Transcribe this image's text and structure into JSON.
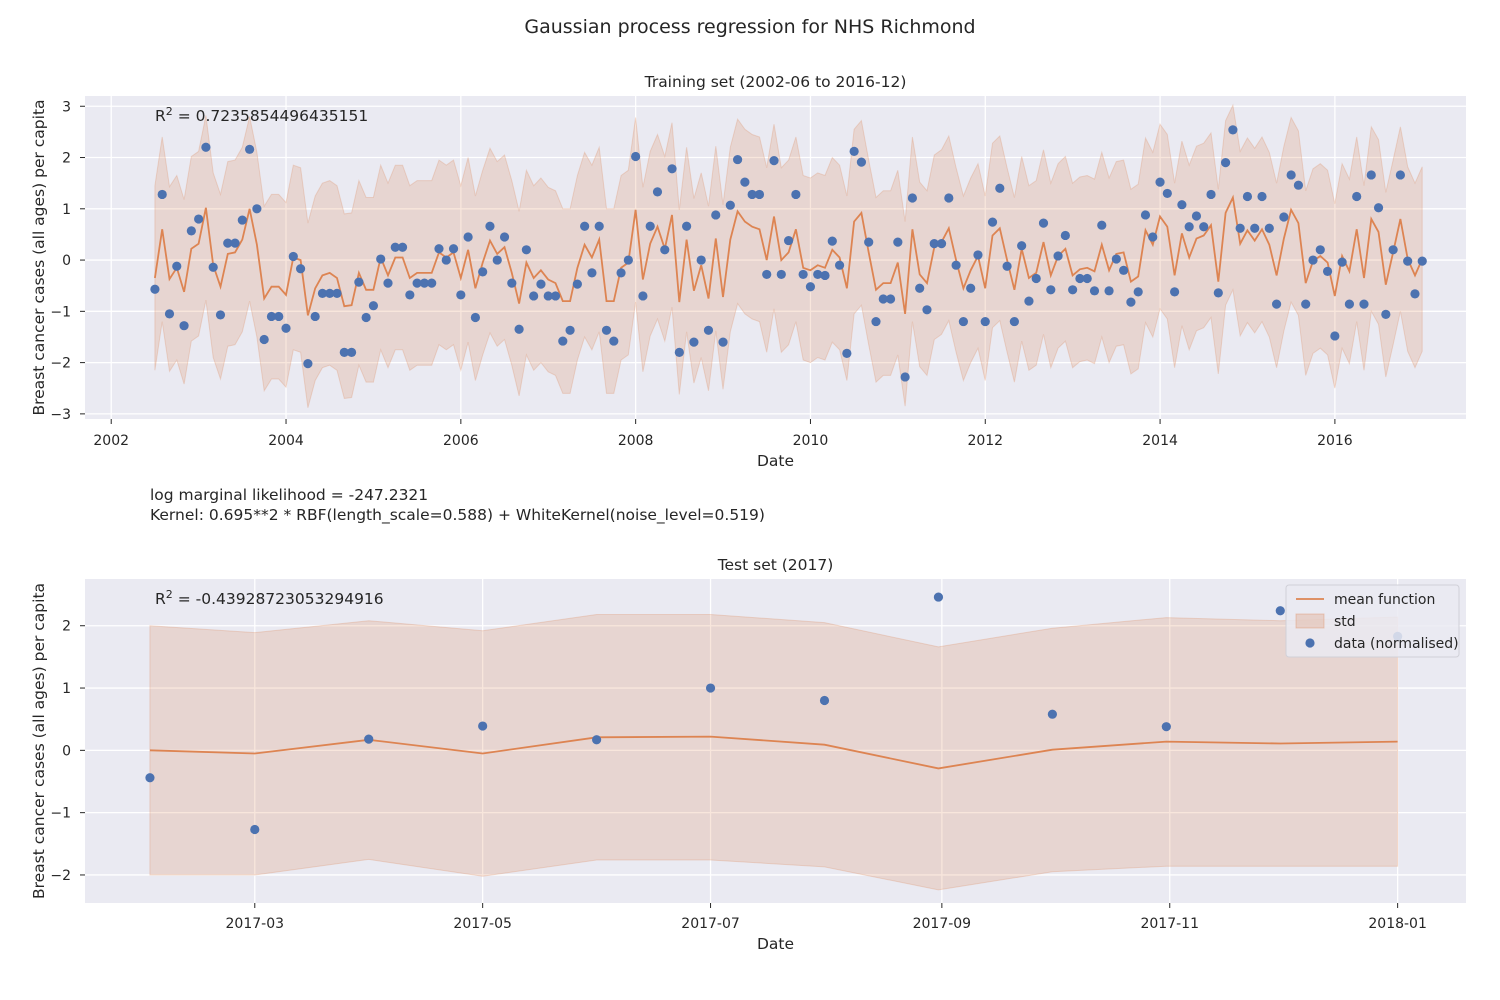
{
  "figure": {
    "title": "Gaussian process regression for NHS Richmond",
    "log_marginal_likelihood": "log marginal likelihood = -247.2321",
    "kernel": "Kernel: 0.695**2 * RBF(length_scale=0.588) + WhiteKernel(noise_level=0.519)"
  },
  "colors": {
    "background": "#eaeaf2",
    "grid": "#ffffff",
    "mean": "#dd8452",
    "std_fill": "#dd8452",
    "data": "#4c72b0"
  },
  "chart_data": [
    {
      "type": "line",
      "title": "Training set (2002-06 to 2016-12)",
      "annotation": "R² = 0.7235854496435151",
      "xlabel": "Date",
      "ylabel": "Breast cancer cases (all ages) per capita",
      "xlim": [
        2001.7,
        2017.5
      ],
      "ylim": [
        -3.1,
        3.2
      ],
      "xticks": [
        2002,
        2004,
        2006,
        2008,
        2010,
        2012,
        2014,
        2016
      ],
      "yticks": [
        -3,
        -2,
        -1,
        0,
        1,
        2,
        3
      ],
      "grid": true,
      "x_start": 2002.5,
      "x_step": 0.08333,
      "series": [
        {
          "name": "data (normalised)",
          "kind": "scatter",
          "values": [
            -0.57,
            1.28,
            -1.05,
            -0.12,
            -1.28,
            0.57,
            0.8,
            2.2,
            -0.14,
            -1.07,
            0.33,
            0.33,
            0.78,
            2.16,
            1.0,
            -1.55,
            -1.1,
            -1.1,
            -1.33,
            0.07,
            -0.17,
            -2.02,
            -1.1,
            -0.65,
            -0.65,
            -0.65,
            -1.8,
            -1.8,
            -0.43,
            -1.12,
            -0.89,
            0.02,
            -0.45,
            0.25,
            0.25,
            -0.68,
            -0.45,
            -0.45,
            -0.45,
            0.22,
            0.0,
            0.22,
            -0.68,
            0.45,
            -1.12,
            -0.23,
            0.66,
            0.0,
            0.45,
            -0.45,
            -1.35,
            0.2,
            -0.7,
            -0.47,
            -0.7,
            -0.7,
            -1.58,
            -1.37,
            -0.47,
            0.66,
            -0.25,
            0.66,
            -1.37,
            -1.58,
            -0.25,
            0.0,
            2.02,
            -0.7,
            0.66,
            1.33,
            0.2,
            1.78,
            -1.8,
            0.66,
            -1.6,
            0.0,
            -1.37,
            0.88,
            -1.6,
            1.07,
            1.96,
            1.52,
            1.28,
            1.28,
            -0.28,
            1.94,
            -0.28,
            0.38,
            1.28,
            -0.28,
            -0.52,
            -0.28,
            -0.3,
            0.37,
            -0.1,
            -1.82,
            2.12,
            1.91,
            0.35,
            -1.2,
            -0.76,
            -0.76,
            0.35,
            -2.28,
            1.21,
            -0.55,
            -0.97,
            0.32,
            0.32,
            1.21,
            -0.1,
            -1.2,
            -0.55,
            0.1,
            -1.2,
            0.74,
            1.4,
            -0.12,
            -1.2,
            0.28,
            -0.8,
            -0.36,
            0.72,
            -0.58,
            0.08,
            0.48,
            -0.58,
            -0.36,
            -0.36,
            -0.6,
            0.68,
            -0.6,
            0.02,
            -0.2,
            -0.82,
            -0.62,
            0.88,
            0.45,
            1.52,
            1.3,
            -0.62,
            1.08,
            0.65,
            0.86,
            0.65,
            1.28,
            -0.64,
            1.9,
            2.54,
            0.62,
            1.24,
            0.62,
            1.24,
            0.62,
            -0.86,
            0.84,
            1.66,
            1.46,
            -0.86,
            0.0,
            0.2,
            -0.22,
            -1.48,
            -0.04,
            -0.86,
            1.24,
            -0.86,
            1.66,
            1.02,
            -1.06,
            0.2,
            1.66,
            -0.02,
            -0.66,
            -0.02
          ]
        },
        {
          "name": "mean function",
          "kind": "line",
          "values": [
            -0.35,
            0.6,
            -0.37,
            -0.15,
            -0.62,
            0.22,
            0.32,
            1.02,
            -0.1,
            -0.52,
            0.12,
            0.15,
            0.4,
            1.0,
            0.3,
            -0.75,
            -0.52,
            -0.52,
            -0.68,
            0.05,
            0.0,
            -1.08,
            -0.55,
            -0.3,
            -0.25,
            -0.35,
            -0.9,
            -0.88,
            -0.25,
            -0.58,
            -0.58,
            0.05,
            -0.3,
            0.05,
            0.05,
            -0.35,
            -0.25,
            -0.25,
            -0.25,
            0.15,
            0.05,
            0.15,
            -0.35,
            0.2,
            -0.55,
            -0.05,
            0.38,
            0.12,
            0.25,
            -0.25,
            -0.85,
            -0.05,
            -0.35,
            -0.2,
            -0.38,
            -0.45,
            -0.8,
            -0.8,
            -0.15,
            0.3,
            0.05,
            0.4,
            -0.8,
            -0.8,
            -0.15,
            -0.05,
            0.98,
            -0.38,
            0.32,
            0.65,
            0.22,
            0.88,
            -0.82,
            0.4,
            -0.6,
            -0.1,
            -0.75,
            0.42,
            -0.72,
            0.4,
            0.95,
            0.75,
            0.65,
            0.6,
            0.0,
            0.85,
            0.0,
            0.15,
            0.6,
            -0.15,
            -0.2,
            -0.1,
            -0.15,
            0.2,
            0.05,
            -0.55,
            0.75,
            0.92,
            0.15,
            -0.58,
            -0.45,
            -0.45,
            -0.05,
            -1.05,
            0.6,
            -0.28,
            -0.45,
            0.25,
            0.35,
            0.62,
            0.0,
            -0.55,
            -0.2,
            0.08,
            -0.55,
            0.48,
            0.62,
            0.0,
            -0.58,
            0.22,
            -0.35,
            -0.25,
            0.35,
            -0.3,
            0.08,
            0.22,
            -0.3,
            -0.18,
            -0.15,
            -0.22,
            0.3,
            -0.2,
            0.12,
            0.15,
            -0.42,
            -0.32,
            0.58,
            0.3,
            0.85,
            0.65,
            -0.3,
            0.52,
            0.05,
            0.42,
            0.48,
            0.68,
            -0.42,
            0.92,
            1.22,
            0.32,
            0.58,
            0.38,
            0.6,
            0.3,
            -0.3,
            0.42,
            0.98,
            0.72,
            -0.45,
            -0.02,
            0.08,
            -0.05,
            -0.7,
            0.08,
            -0.22,
            0.6,
            -0.35,
            0.8,
            0.55,
            -0.48,
            0.15,
            0.8,
            0.02,
            -0.3,
            0.02
          ]
        },
        {
          "name": "std",
          "kind": "band",
          "half_width": 1.8
        }
      ]
    },
    {
      "type": "line",
      "title": "Test set (2017)",
      "annotation": "R² = -0.43928723053294916",
      "xlabel": "Date",
      "ylabel": "Breast cancer cases (all ages) per capita",
      "xlim": [
        -0.57,
        11.55
      ],
      "ylim": [
        -2.45,
        2.75
      ],
      "xticks": [
        0.92,
        2.92,
        4.92,
        6.95,
        8.95,
        10.95
      ],
      "xticklabels": [
        "2017-03",
        "2017-05",
        "2017-07",
        "2017-09",
        "2017-11",
        "2018-01"
      ],
      "yticks": [
        -2,
        -1,
        0,
        1,
        2
      ],
      "grid": true,
      "legend": {
        "position": "top-right",
        "items": [
          "mean function",
          "std",
          "data (normalised)"
        ]
      },
      "x": [
        0,
        0.92,
        1.92,
        2.92,
        3.92,
        4.92,
        5.92,
        6.92,
        7.92,
        8.92,
        9.92,
        10.95
      ],
      "series": [
        {
          "name": "data (normalised)",
          "kind": "scatter",
          "values": [
            -0.44,
            -1.27,
            0.18,
            0.39,
            0.17,
            1.0,
            0.8,
            2.46,
            0.58,
            0.38,
            2.24,
            1.83
          ]
        },
        {
          "name": "mean function",
          "kind": "line",
          "values": [
            0.0,
            -0.05,
            0.17,
            -0.05,
            0.21,
            0.22,
            0.09,
            -0.29,
            0.01,
            0.14,
            0.11,
            0.14
          ]
        },
        {
          "name": "std",
          "kind": "band",
          "upper": [
            2.0,
            1.89,
            2.08,
            1.92,
            2.18,
            2.18,
            2.05,
            1.66,
            1.96,
            2.13,
            2.08,
            2.14
          ],
          "lower": [
            -2.0,
            -2.0,
            -1.75,
            -2.02,
            -1.76,
            -1.76,
            -1.87,
            -2.24,
            -1.95,
            -1.86,
            -1.86,
            -1.86
          ]
        }
      ]
    }
  ]
}
